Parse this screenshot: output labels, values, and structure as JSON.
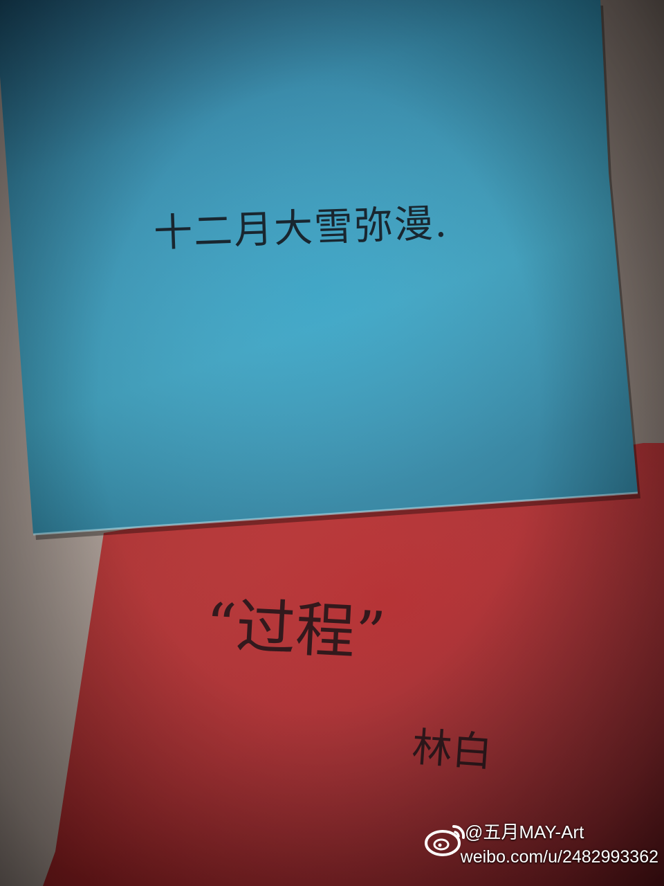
{
  "photo": {
    "subject": "two handwritten paper notes on a wall",
    "blue_note": {
      "text": "十二月大雪弥漫.",
      "paper_color": "#2f96b6"
    },
    "red_note": {
      "title": "“过程”",
      "author": "林白",
      "paper_color": "#b22a2c"
    }
  },
  "watermark": {
    "handle": "@五月MAY-Art",
    "url": "weibo.com/u/2482993362",
    "logo_icon": "weibo-logo-icon"
  }
}
